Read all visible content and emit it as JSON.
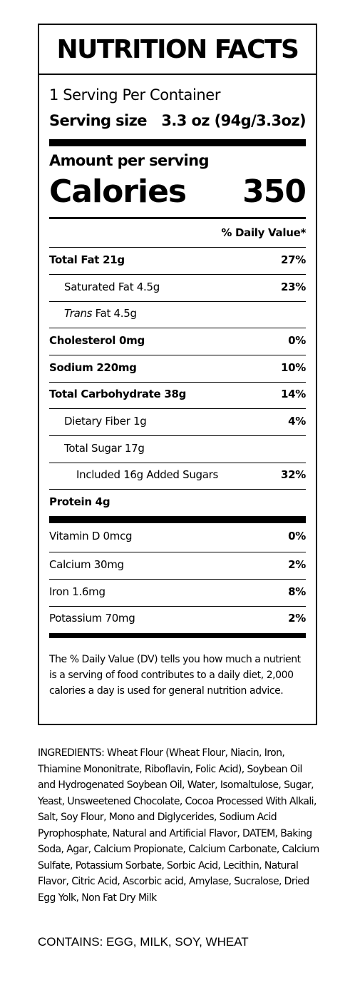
{
  "label": {
    "title": "NUTRITION FACTS",
    "servings_per_container": "1 Serving Per Container",
    "serving_size_label": "Serving size",
    "serving_size_value": "3.3 oz (94g/3.3oz)",
    "amount_per_serving": "Amount per serving",
    "calories_label": "Calories",
    "calories_value": "350",
    "daily_value_header": "% Daily Value*",
    "nutrients": [
      {
        "name": "Total Fat 21g",
        "dv": "27%"
      },
      {
        "name": "Saturated Fat 4.5g",
        "dv": "23%"
      },
      {
        "name_italic": "Trans",
        "name_rest": " Fat 4.5g",
        "dv": ""
      },
      {
        "name": "Cholesterol 0mg",
        "dv": "0%"
      },
      {
        "name": "Sodium 220mg",
        "dv": "10%"
      },
      {
        "name": "Total Carbohydrate 38g",
        "dv": "14%"
      },
      {
        "name": "Dietary Fiber 1g",
        "dv": "4%"
      },
      {
        "name": "Total Sugar 17g",
        "dv": ""
      },
      {
        "name": "Included 16g Added Sugars",
        "dv": "32%"
      },
      {
        "name": "Protein 4g",
        "dv": ""
      }
    ],
    "vitamins": [
      {
        "name": "Vitamin D 0mcg",
        "dv": "0%"
      },
      {
        "name": "Calcium 30mg",
        "dv": "2%"
      },
      {
        "name": "Iron 1.6mg",
        "dv": "8%"
      },
      {
        "name": "Potassium 70mg",
        "dv": "2%"
      }
    ],
    "footnote": "The % Daily Value (DV) tells you how much a nutrient is a serving of food contributes to a daily diet, 2,000 calories a day is used for general nutrition advice."
  },
  "ingredients": "INGREDIENTS: Wheat Flour (Wheat Flour, Niacin, Iron, Thiamine Mononitrate, Riboflavin, Folic Acid), Soybean Oil and Hydrogenated Soybean Oil, Water, Isomaltulose, Sugar, Yeast, Unsweetened Chocolate, Cocoa Processed With Alkali, Salt, Soy Flour, Mono and Diglycerides, Sodium Acid Pyrophosphate, Natural and Artificial Flavor, DATEM, Baking Soda, Agar, Calcium Propionate, Calcium Carbonate, Calcium Sulfate, Potassium Sorbate, Sorbic Acid, Lecithin, Natural Flavor, Citric Acid, Ascorbic acid, Amylase, Sucralose, Dried Egg Yolk, Non Fat Dry Milk",
  "contains": "CONTAINS: EGG, MILK, SOY, WHEAT"
}
